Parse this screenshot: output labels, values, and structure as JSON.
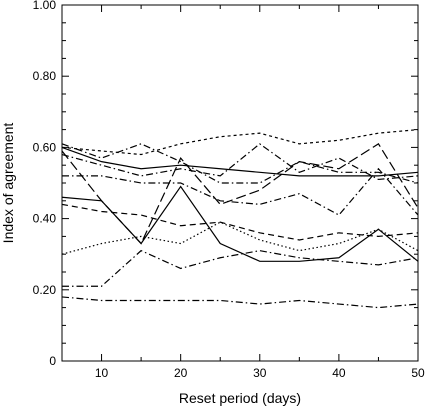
{
  "chart_data": {
    "type": "line",
    "title": "",
    "xlabel": "Reset period (days)",
    "ylabel": "Index of agreement",
    "xlim": [
      5,
      50
    ],
    "ylim": [
      0,
      1
    ],
    "x_ticks": [
      "10",
      "20",
      "30",
      "40",
      "50"
    ],
    "y_ticks": [
      "0",
      "0.20",
      "0.40",
      "0.60",
      "0.80",
      "1.00"
    ],
    "grid": false,
    "legend": "none",
    "series": [
      {
        "style": "short-dash",
        "x": [
          5,
          10,
          15,
          20,
          25,
          30,
          35,
          40,
          45,
          50
        ],
        "y": [
          0.6,
          0.59,
          0.58,
          0.61,
          0.63,
          0.64,
          0.61,
          0.62,
          0.64,
          0.65
        ]
      },
      {
        "style": "solid",
        "x": [
          5,
          10,
          15,
          20,
          25,
          30,
          35,
          40,
          45,
          50
        ],
        "y": [
          0.6,
          0.56,
          0.54,
          0.55,
          0.54,
          0.53,
          0.52,
          0.52,
          0.52,
          0.53
        ]
      },
      {
        "style": "dash-dot",
        "x": [
          5,
          10,
          15,
          20,
          25,
          30,
          35,
          40,
          45,
          50
        ],
        "y": [
          0.61,
          0.57,
          0.61,
          0.56,
          0.5,
          0.5,
          0.56,
          0.53,
          0.53,
          0.5
        ]
      },
      {
        "style": "dash-dot",
        "x": [
          5,
          10,
          15,
          20,
          25,
          30,
          35,
          40,
          45,
          50
        ],
        "y": [
          0.58,
          0.55,
          0.52,
          0.54,
          0.52,
          0.61,
          0.53,
          0.57,
          0.51,
          0.52
        ]
      },
      {
        "style": "long-dash",
        "x": [
          5,
          10,
          15,
          20,
          25,
          30,
          35,
          40,
          45,
          50
        ],
        "y": [
          0.59,
          0.45,
          0.33,
          0.57,
          0.44,
          0.48,
          0.56,
          0.54,
          0.61,
          0.43
        ]
      },
      {
        "style": "dash-dot",
        "x": [
          5,
          10,
          15,
          20,
          25,
          30,
          35,
          40,
          45,
          50
        ],
        "y": [
          0.52,
          0.52,
          0.5,
          0.5,
          0.45,
          0.44,
          0.47,
          0.41,
          0.54,
          0.41
        ]
      },
      {
        "style": "solid",
        "x": [
          5,
          10,
          15,
          20,
          25,
          30,
          35,
          40,
          45,
          50
        ],
        "y": [
          0.46,
          0.45,
          0.33,
          0.49,
          0.33,
          0.28,
          0.28,
          0.29,
          0.37,
          0.28
        ]
      },
      {
        "style": "dashed",
        "x": [
          5,
          10,
          15,
          20,
          25,
          30,
          35,
          40,
          45,
          50
        ],
        "y": [
          0.44,
          0.42,
          0.41,
          0.38,
          0.39,
          0.36,
          0.34,
          0.36,
          0.35,
          0.36
        ]
      },
      {
        "style": "dotted",
        "x": [
          5,
          10,
          15,
          20,
          25,
          30,
          35,
          40,
          45,
          50
        ],
        "y": [
          0.3,
          0.33,
          0.35,
          0.33,
          0.39,
          0.34,
          0.31,
          0.33,
          0.37,
          0.31
        ]
      },
      {
        "style": "dash-dot",
        "x": [
          5,
          10,
          15,
          20,
          25,
          30,
          35,
          40,
          45,
          50
        ],
        "y": [
          0.21,
          0.21,
          0.31,
          0.26,
          0.29,
          0.31,
          0.29,
          0.28,
          0.27,
          0.29
        ]
      },
      {
        "style": "dash-dot",
        "x": [
          5,
          10,
          15,
          20,
          25,
          30,
          35,
          40,
          45,
          50
        ],
        "y": [
          0.18,
          0.17,
          0.17,
          0.17,
          0.17,
          0.16,
          0.17,
          0.16,
          0.15,
          0.16
        ]
      }
    ]
  }
}
